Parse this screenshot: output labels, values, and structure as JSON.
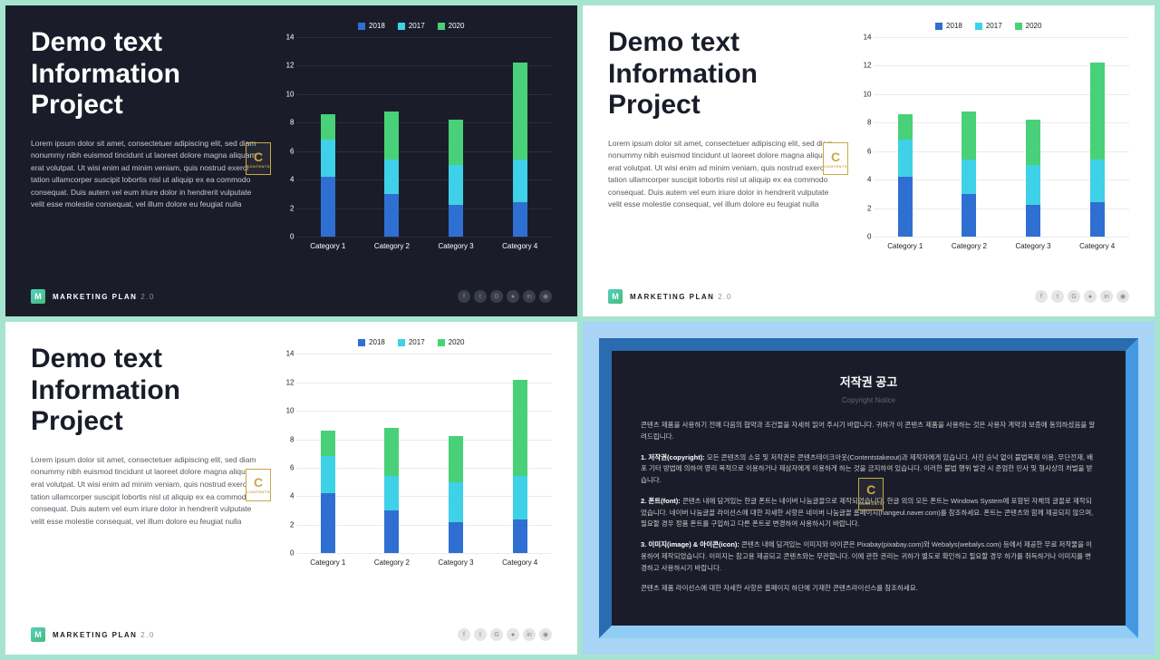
{
  "title_lines": [
    "Demo text",
    "Information",
    "Project"
  ],
  "body": "Lorem ipsum dolor sit amet, consectetuer adipiscing elit, sed diam nonummy nibh euismod tincidunt ut laoreet dolore magna aliquam erat volutpat. Ut wisi enim ad minim veniam, quis nostrud exerci tation ullamcorper suscipit lobortis nisl ut aliquip ex ea commodo consequat. Duis autem vel eum iriure dolor in hendrerit vulputate velit esse molestie consequat, vel illum dolore eu feugiat nulla",
  "footer": {
    "badge": "M",
    "label": "MARKETING PLAN",
    "version": "2.0",
    "social": [
      "f",
      "t",
      "G",
      "●",
      "in",
      "◉"
    ]
  },
  "chart": {
    "type": "stacked-bar",
    "legend": [
      {
        "label": "2018",
        "color": "#2f6fd1"
      },
      {
        "label": "2017",
        "color": "#3fd1e8"
      },
      {
        "label": "2020",
        "color": "#48d178"
      }
    ],
    "ymax": 14,
    "ytick_step": 2,
    "categories": [
      "Category 1",
      "Category 2",
      "Category 3",
      "Category 4"
    ],
    "series_2018": [
      4.2,
      3.0,
      2.2,
      2.4
    ],
    "series_2017": [
      2.6,
      2.4,
      2.8,
      3.0
    ],
    "series_2020": [
      1.8,
      3.4,
      3.2,
      6.8
    ],
    "colors": {
      "2018": "#2f6fd1",
      "2017": "#3fd1e8",
      "2020": "#48d178"
    }
  },
  "logo": {
    "letter": "C",
    "sub": "CONTENTS"
  },
  "slide4": {
    "title": "저작권 공고",
    "subtitle": "Copyright Notice",
    "paragraphs": [
      {
        "bold": "",
        "text": "콘텐츠 제품을 사용하기 전에 다음의 협약과 조건들을 자세히 읽어 주시기 바랍니다. 귀하가 이 콘텐츠 제품을 사용하는 것은 사용자 계약과 보증에 동의하셨음을 알려드립니다."
      },
      {
        "bold": "1. 저작권(copyright): ",
        "text": "모든 콘텐츠의 소유 및 저작권은 콘텐츠테이크아웃(Contentstakeout)과 제작자에게 있습니다. 사진 승낙 없이 불법복제 이용, 무단전재, 배포 기타 방법에 의하여 영리 목적으로 이용하거나 제삼자에게 이용하게 하는 것을 금지하여 있습니다. 이러한 불법 행위 발견 시 준엄한 민사 및 형사상의 처벌을 받습니다."
      },
      {
        "bold": "2. 폰트(font): ",
        "text": "콘텐츠 내에 담겨있는 한글 폰트는 네이버 나눔글꼴으로 제작되었습니다. 한글 외의 모든 폰트는 Windows System에 포함된 자체의 글꼴로 제작되었습니다. 네이버 나눔글꼴 라이선스에 대한 자세한 사항은 네이버 나눔글꼴 홈페이지(hangeul.naver.com)를 참조하세요. 폰트는 콘텐츠와 함께 제공되지 않으며, 필요할 경우 정품 폰트를 구입하고 다른 폰트로 변경하여 사용하시기 바랍니다."
      },
      {
        "bold": "3. 이미지(image) & 아이콘(icon): ",
        "text": "콘텐츠 내에 담겨있는 이미지와 아이콘은 Pixabay(pixabay.com)와 Webalys(webalys.com) 등에서 제공한 무료 저작물을 이용하여 제작되었습니다. 이미지는 참고용 제공되고 콘텐츠와는 무관합니다. 이에 관한 권리는 귀하가 별도로 확인하고 필요할 경우 하가를 취득하거나 이미지를 변경하고 사용하시기 바랍니다."
      },
      {
        "bold": "",
        "text": "콘텐츠 제품 라이선스에 대한 자세한 사항은 홈페이지 하단에 기재한 콘텐츠라이선스를 참조하세요."
      }
    ]
  }
}
